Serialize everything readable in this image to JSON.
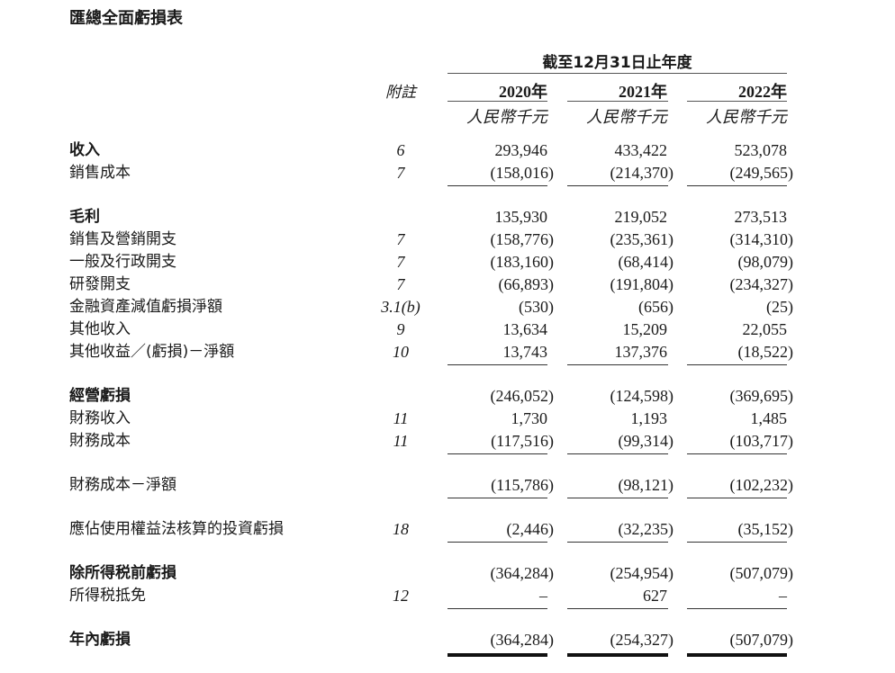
{
  "title": "匯總全面虧損表",
  "period_header": "截至12月31日止年度",
  "note_header": "附註",
  "columns": [
    {
      "year": "2020年",
      "currency": "人民幣千元"
    },
    {
      "year": "2021年",
      "currency": "人民幣千元"
    },
    {
      "year": "2022年",
      "currency": "人民幣千元"
    }
  ],
  "sections": [
    {
      "underline": "single",
      "rows": [
        {
          "label": "收入",
          "note": "6",
          "bold": true,
          "values": [
            "293,946",
            "433,422",
            "523,078"
          ]
        },
        {
          "label": "銷售成本",
          "note": "7",
          "bold": false,
          "values": [
            "(158,016)",
            "(214,370)",
            "(249,565)"
          ]
        }
      ]
    },
    {
      "underline": "single",
      "rows": [
        {
          "label": "毛利",
          "note": "",
          "bold": true,
          "values": [
            "135,930",
            "219,052",
            "273,513"
          ]
        },
        {
          "label": "銷售及營銷開支",
          "note": "7",
          "bold": false,
          "values": [
            "(158,776)",
            "(235,361)",
            "(314,310)"
          ]
        },
        {
          "label": "一般及行政開支",
          "note": "7",
          "bold": false,
          "values": [
            "(183,160)",
            "(68,414)",
            "(98,079)"
          ]
        },
        {
          "label": "研發開支",
          "note": "7",
          "bold": false,
          "values": [
            "(66,893)",
            "(191,804)",
            "(234,327)"
          ]
        },
        {
          "label": "金融資產減值虧損淨額",
          "note": "3.1(b)",
          "bold": false,
          "values": [
            "(530)",
            "(656)",
            "(25)"
          ]
        },
        {
          "label": "其他收入",
          "note": "9",
          "bold": false,
          "values": [
            "13,634",
            "15,209",
            "22,055"
          ]
        },
        {
          "label": "其他收益／(虧損)－淨額",
          "note": "10",
          "bold": false,
          "values": [
            "13,743",
            "137,376",
            "(18,522)"
          ]
        }
      ]
    },
    {
      "underline": "single",
      "rows": [
        {
          "label": "經營虧損",
          "note": "",
          "bold": true,
          "values": [
            "(246,052)",
            "(124,598)",
            "(369,695)"
          ]
        },
        {
          "label": "財務收入",
          "note": "11",
          "bold": false,
          "values": [
            "1,730",
            "1,193",
            "1,485"
          ]
        },
        {
          "label": "財務成本",
          "note": "11",
          "bold": false,
          "values": [
            "(117,516)",
            "(99,314)",
            "(103,717)"
          ]
        }
      ]
    },
    {
      "underline": "single",
      "rows": [
        {
          "label": "財務成本－淨額",
          "note": "",
          "bold": false,
          "values": [
            "(115,786)",
            "(98,121)",
            "(102,232)"
          ]
        }
      ]
    },
    {
      "underline": "single",
      "rows": [
        {
          "label": "應佔使用權益法核算的投資虧損",
          "note": "18",
          "bold": false,
          "values": [
            "(2,446)",
            "(32,235)",
            "(35,152)"
          ]
        }
      ]
    },
    {
      "underline": "single",
      "rows": [
        {
          "label": "除所得税前虧損",
          "note": "",
          "bold": true,
          "values": [
            "(364,284)",
            "(254,954)",
            "(507,079)"
          ]
        },
        {
          "label": "所得税抵免",
          "note": "12",
          "bold": false,
          "values": [
            "–",
            "627",
            "–"
          ]
        }
      ]
    },
    {
      "underline": "thick",
      "rows": [
        {
          "label": "年內虧損",
          "note": "",
          "bold": true,
          "values": [
            "(364,284)",
            "(254,327)",
            "(507,079)"
          ]
        }
      ]
    }
  ]
}
